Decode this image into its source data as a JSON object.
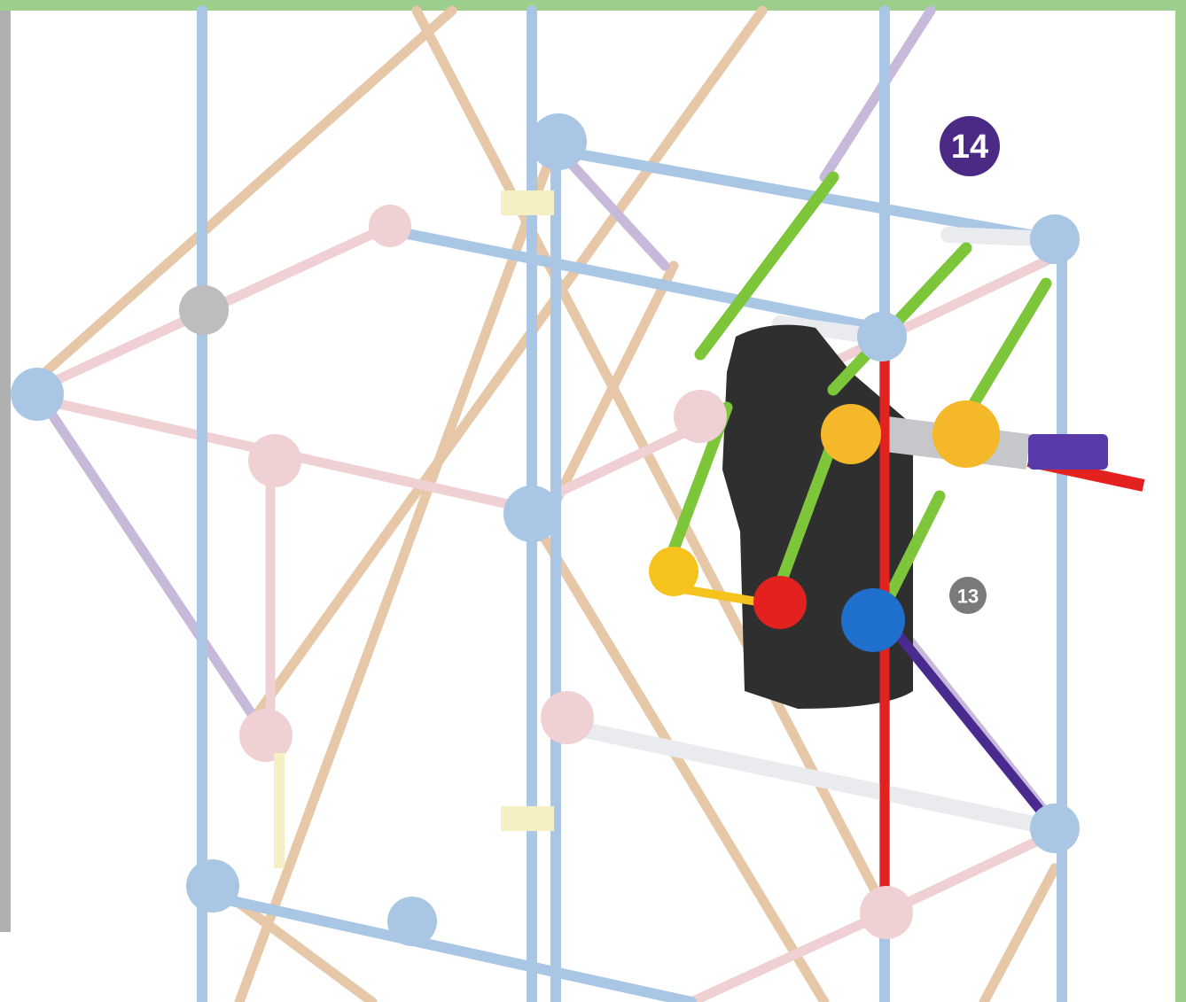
{
  "step": {
    "number": "14"
  },
  "callouts": [
    {
      "label": "13"
    }
  ]
}
